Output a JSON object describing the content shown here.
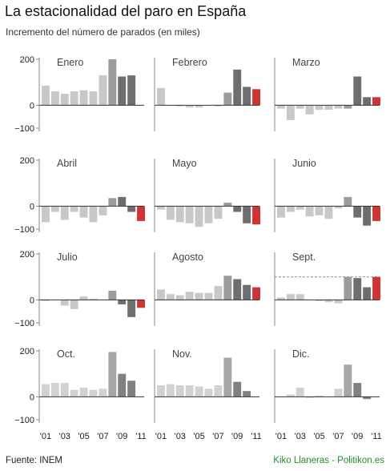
{
  "title": "La estacionalidad del paro en España",
  "subtitle": "Incremento del número de parados (en miles)",
  "footer": {
    "source": "Fuente: INEM",
    "credit": "Kiko Llaneras - Politikon.es"
  },
  "colors": {
    "light": "#c8c8c8",
    "mid": "#9c9c9c",
    "dark": "#6e6e6e",
    "current": "#d13232",
    "reference": "#6cae6c"
  },
  "chart_data": {
    "type": "bar",
    "layout": "small-multiples 4x3",
    "x": [
      "'01",
      "'02",
      "'03",
      "'04",
      "'05",
      "'06",
      "'07",
      "'08",
      "'09",
      "'10",
      "'11"
    ],
    "x_tick_labels": [
      "'01",
      "'03",
      "'05",
      "'07",
      "'09",
      "'11"
    ],
    "ylim": [
      -100,
      200
    ],
    "y_ticks": [
      200,
      0,
      -100
    ],
    "panels": [
      {
        "month": "Enero",
        "dimmed": false,
        "values": [
          85,
          60,
          50,
          60,
          65,
          60,
          130,
          200,
          125,
          130,
          null
        ]
      },
      {
        "month": "Febrero",
        "dimmed": false,
        "values": [
          75,
          0,
          -5,
          -10,
          -10,
          0,
          -5,
          55,
          155,
          80,
          70
        ]
      },
      {
        "month": "Marzo",
        "dimmed": false,
        "values": [
          -15,
          -65,
          -15,
          -40,
          -20,
          -20,
          -15,
          -15,
          125,
          35,
          35
        ]
      },
      {
        "month": "Abril",
        "dimmed": false,
        "values": [
          -70,
          -25,
          -60,
          -25,
          -50,
          -70,
          -40,
          35,
          40,
          -25,
          -65
        ]
      },
      {
        "month": "Mayo",
        "dimmed": false,
        "values": [
          -15,
          -60,
          -70,
          -75,
          -90,
          -75,
          -55,
          15,
          -25,
          -75,
          -80
        ]
      },
      {
        "month": "Junio",
        "dimmed": false,
        "values": [
          -50,
          -25,
          -15,
          -45,
          -40,
          -55,
          -10,
          40,
          -50,
          -85,
          -65
        ]
      },
      {
        "month": "Julio",
        "dimmed": false,
        "values": [
          -5,
          0,
          -25,
          -40,
          15,
          5,
          0,
          40,
          -20,
          -75,
          -35
        ]
      },
      {
        "month": "Agosto",
        "dimmed": false,
        "values": [
          45,
          25,
          20,
          35,
          30,
          30,
          60,
          105,
          90,
          65,
          55
        ]
      },
      {
        "month": "Sept.",
        "dimmed": false,
        "reference_line": 100,
        "values": [
          10,
          25,
          25,
          0,
          -5,
          -10,
          -15,
          100,
          95,
          55,
          100
        ]
      },
      {
        "month": "Oct.",
        "dimmed": true,
        "values": [
          55,
          60,
          60,
          30,
          40,
          30,
          35,
          195,
          100,
          70,
          null
        ]
      },
      {
        "month": "Nov.",
        "dimmed": true,
        "values": [
          50,
          55,
          50,
          50,
          45,
          35,
          50,
          170,
          65,
          25,
          null
        ]
      },
      {
        "month": "Dic.",
        "dimmed": true,
        "values": [
          0,
          10,
          40,
          -5,
          5,
          0,
          35,
          140,
          60,
          -10,
          null
        ]
      }
    ]
  }
}
